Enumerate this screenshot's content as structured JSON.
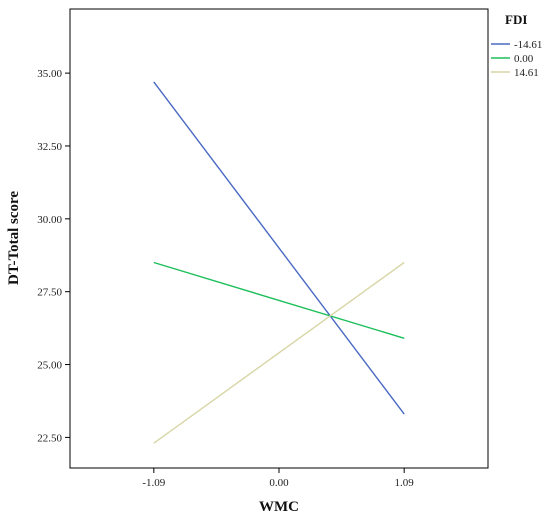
{
  "chart_data": {
    "type": "line",
    "xlabel": "WMC",
    "ylabel": "DT-Total score",
    "x": [
      -1.09,
      1.09
    ],
    "x_tick_labels": [
      "-1.09",
      "0.00",
      "1.09"
    ],
    "x_ticks": [
      -1.09,
      0.0,
      1.09
    ],
    "xlim": [
      -1.82,
      1.82
    ],
    "ylim": [
      21.45,
      37.2
    ],
    "y_ticks": [
      22.5,
      25.0,
      27.5,
      30.0,
      32.5,
      35.0
    ],
    "y_tick_labels": [
      "22.50",
      "25.00",
      "27.50",
      "30.00",
      "32.50",
      "35.00"
    ],
    "legend": {
      "title": "FDI",
      "placement": "right-top"
    },
    "series": [
      {
        "name": "-14.61",
        "color": "#4a69c2",
        "values": [
          34.7,
          23.3
        ]
      },
      {
        "name": "0.00",
        "color": "#1cbf5a",
        "values": [
          28.5,
          25.9
        ]
      },
      {
        "name": "14.61",
        "color": "#d8d6a6",
        "values": [
          22.3,
          28.5
        ]
      }
    ],
    "grid": false
  }
}
